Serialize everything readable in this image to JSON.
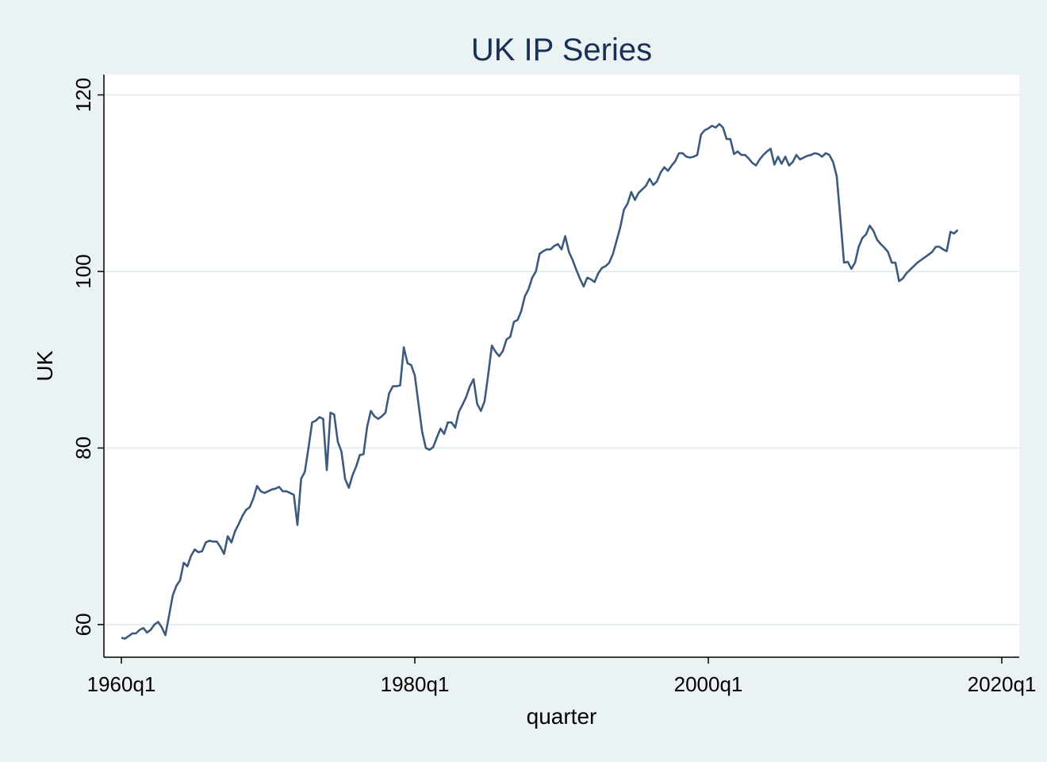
{
  "chart_data": {
    "type": "line",
    "title": "UK IP Series",
    "xlabel": "quarter",
    "ylabel": "UK",
    "x_ticks": [
      "1960q1",
      "1980q1",
      "2000q1",
      "2020q1"
    ],
    "y_ticks": [
      60,
      80,
      100,
      120
    ],
    "xlim": [
      "1960q1",
      "2020q1"
    ],
    "ylim": [
      56.3,
      122.3
    ],
    "grid": true,
    "legend": "none",
    "colors": {
      "line": "#3c5a7e",
      "plot_bg": "#ffffff",
      "outer_bg": "#eaf2f3",
      "grid": "#e5eeef"
    },
    "series": [
      {
        "x": [
          "1960q1",
          "1960q2",
          "1960q3",
          "1960q4",
          "1961q1",
          "1961q2",
          "1961q3",
          "1961q4",
          "1962q1",
          "1962q2",
          "1962q3",
          "1962q4",
          "1963q1",
          "1963q2",
          "1963q3",
          "1963q4",
          "1964q1",
          "1964q2",
          "1964q3",
          "1964q4",
          "1965q1",
          "1965q2",
          "1965q3",
          "1965q4",
          "1966q1",
          "1966q2",
          "1966q3",
          "1966q4",
          "1967q1",
          "1967q2",
          "1967q3",
          "1967q4",
          "1968q1",
          "1968q2",
          "1968q3",
          "1968q4",
          "1969q1",
          "1969q2",
          "1969q3",
          "1969q4",
          "1970q1",
          "1970q2",
          "1970q3",
          "1970q4",
          "1971q1",
          "1971q2",
          "1971q3",
          "1971q4",
          "1972q1",
          "1972q2",
          "1972q3",
          "1972q4",
          "1973q1",
          "1973q2",
          "1973q3",
          "1973q4",
          "1974q1",
          "1974q2",
          "1974q3",
          "1974q4",
          "1975q1",
          "1975q2",
          "1975q3",
          "1975q4",
          "1976q1",
          "1976q2",
          "1976q3",
          "1976q4",
          "1977q1",
          "1977q2",
          "1977q3",
          "1977q4",
          "1978q1",
          "1978q2",
          "1978q3",
          "1978q4",
          "1979q1",
          "1979q2",
          "1979q3",
          "1979q4",
          "1980q1",
          "1980q2",
          "1980q3",
          "1980q4",
          "1981q1",
          "1981q2",
          "1981q3",
          "1981q4",
          "1982q1",
          "1982q2",
          "1982q3",
          "1982q4",
          "1983q1",
          "1983q2",
          "1983q3",
          "1983q4",
          "1984q1",
          "1984q2",
          "1984q3",
          "1984q4",
          "1985q1",
          "1985q2",
          "1985q3",
          "1985q4",
          "1986q1",
          "1986q2",
          "1986q3",
          "1986q4",
          "1987q1",
          "1987q2",
          "1987q3",
          "1987q4",
          "1988q1",
          "1988q2",
          "1988q3",
          "1988q4",
          "1989q1",
          "1989q2",
          "1989q3",
          "1989q4",
          "1990q1",
          "1990q2",
          "1990q3",
          "1990q4",
          "1991q1",
          "1991q2",
          "1991q3",
          "1991q4",
          "1992q1",
          "1992q2",
          "1992q3",
          "1992q4",
          "1993q1",
          "1993q2",
          "1993q3",
          "1993q4",
          "1994q1",
          "1994q2",
          "1994q3",
          "1994q4",
          "1995q1",
          "1995q2",
          "1995q3",
          "1995q4",
          "1996q1",
          "1996q2",
          "1996q3",
          "1996q4",
          "1997q1",
          "1997q2",
          "1997q3",
          "1997q4",
          "1998q1",
          "1998q2",
          "1998q3",
          "1998q4",
          "1999q1",
          "1999q2",
          "1999q3",
          "1999q4",
          "2000q1",
          "2000q2",
          "2000q3",
          "2000q4",
          "2001q1",
          "2001q2",
          "2001q3",
          "2001q4",
          "2002q1",
          "2002q2",
          "2002q3",
          "2002q4",
          "2003q1",
          "2003q2",
          "2003q3",
          "2003q4",
          "2004q1",
          "2004q2",
          "2004q3",
          "2004q4",
          "2005q1",
          "2005q2",
          "2005q3",
          "2005q4",
          "2006q1",
          "2006q2",
          "2006q3",
          "2006q4",
          "2007q1",
          "2007q2",
          "2007q3",
          "2007q4",
          "2008q1",
          "2008q2",
          "2008q3",
          "2008q4",
          "2009q1",
          "2009q2",
          "2009q3",
          "2009q4",
          "2010q1",
          "2010q2",
          "2010q3",
          "2010q4",
          "2011q1",
          "2011q2",
          "2011q3",
          "2011q4",
          "2012q1",
          "2012q2",
          "2012q3",
          "2012q4",
          "2013q1",
          "2013q2",
          "2013q3",
          "2013q4",
          "2014q1",
          "2014q2",
          "2014q3",
          "2014q4",
          "2015q1",
          "2015q2",
          "2015q3",
          "2015q4",
          "2016q1",
          "2016q2",
          "2016q3",
          "2016q4"
        ],
        "values": [
          58.5,
          58.4,
          58.7,
          59.0,
          59.0,
          59.4,
          59.6,
          59.1,
          59.4,
          60.0,
          60.3,
          59.7,
          58.8,
          61.0,
          63.3,
          64.4,
          65.0,
          67.0,
          66.6,
          67.8,
          68.5,
          68.2,
          68.3,
          69.3,
          69.5,
          69.4,
          69.4,
          68.8,
          68.0,
          70.0,
          69.3,
          70.6,
          71.4,
          72.3,
          73.0,
          73.3,
          74.3,
          75.7,
          75.1,
          74.9,
          75.1,
          75.3,
          75.4,
          75.6,
          75.1,
          75.1,
          74.9,
          74.7,
          71.3,
          76.5,
          77.3,
          80.0,
          82.9,
          83.1,
          83.5,
          83.3,
          77.5,
          84.0,
          83.8,
          80.7,
          79.6,
          76.5,
          75.5,
          76.9,
          77.9,
          79.2,
          79.3,
          82.4,
          84.2,
          83.6,
          83.3,
          83.6,
          84.0,
          86.2,
          87.0,
          87.0,
          87.1,
          91.4,
          89.6,
          89.4,
          88.2,
          85.0,
          81.8,
          80.0,
          79.8,
          80.1,
          81.2,
          82.2,
          81.6,
          82.9,
          82.9,
          82.3,
          84.1,
          84.9,
          85.8,
          87.0,
          87.8,
          85.0,
          84.2,
          85.3,
          88.3,
          91.6,
          90.9,
          90.4,
          91.0,
          92.3,
          92.6,
          94.3,
          94.5,
          95.5,
          97.2,
          98.0,
          99.3,
          100.0,
          102.0,
          102.3,
          102.5,
          102.5,
          102.9,
          103.1,
          102.5,
          104.0,
          102.2,
          101.3,
          100.2,
          99.2,
          98.3,
          99.3,
          99.1,
          98.8,
          99.8,
          100.4,
          100.6,
          101.0,
          102.0,
          103.5,
          105.0,
          107.0,
          107.7,
          109.0,
          108.1,
          108.9,
          109.3,
          109.7,
          110.5,
          109.8,
          110.2,
          111.2,
          111.8,
          111.4,
          112.0,
          112.5,
          113.4,
          113.4,
          113.0,
          112.9,
          113.0,
          113.2,
          115.5,
          116.0,
          116.2,
          116.5,
          116.3,
          116.7,
          116.3,
          115.0,
          115.0,
          113.3,
          113.6,
          113.2,
          113.2,
          112.8,
          112.3,
          112.0,
          112.7,
          113.2,
          113.6,
          113.9,
          112.1,
          113.0,
          112.2,
          113.0,
          112.0,
          112.4,
          113.2,
          112.7,
          112.9,
          113.1,
          113.2,
          113.4,
          113.3,
          113.0,
          113.4,
          113.2,
          112.4,
          110.8,
          106.0,
          101.0,
          101.1,
          100.3,
          101.0,
          102.8,
          103.8,
          104.2,
          105.2,
          104.6,
          103.6,
          103.1,
          102.7,
          102.2,
          101.0,
          101.0,
          98.9,
          99.2,
          99.8,
          100.2,
          100.6,
          101.0,
          101.3,
          101.6,
          101.9,
          102.2,
          102.8,
          102.8,
          102.5,
          102.3,
          104.5,
          104.3
        ]
      }
    ],
    "tail_point": {
      "x": "2017q1",
      "value": 104.7
    }
  }
}
